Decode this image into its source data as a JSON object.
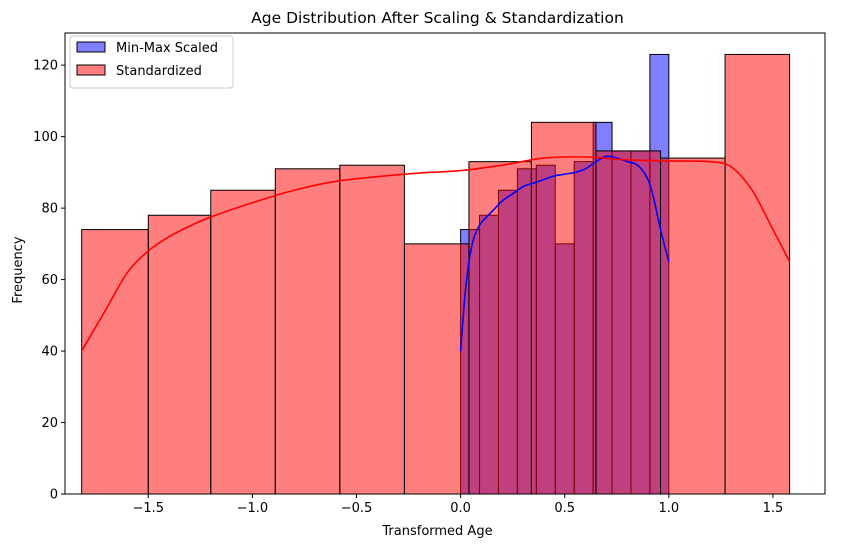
{
  "chart_data": {
    "type": "histogram",
    "title": "Age Distribution After Scaling & Standardization",
    "xlabel": "Transformed Age",
    "ylabel": "Frequency",
    "xlim": [
      -1.9,
      1.75
    ],
    "ylim": [
      0,
      129
    ],
    "x_ticks": [
      -1.5,
      -1.0,
      -0.5,
      0.0,
      0.5,
      1.0,
      1.5
    ],
    "x_tick_labels": [
      "−1.5",
      "−1.0",
      "−0.5",
      "0.0",
      "0.5",
      "1.0",
      "1.5"
    ],
    "y_ticks": [
      0,
      20,
      40,
      60,
      80,
      100,
      120
    ],
    "y_tick_labels": [
      "0",
      "20",
      "40",
      "60",
      "80",
      "100",
      "120"
    ],
    "grid": false,
    "legend_position": "top-left",
    "series": [
      {
        "name": "Min-Max Scaled",
        "color": "#0000ff",
        "fill_opacity": 0.5,
        "bin_edges": [
          0.0,
          0.0909,
          0.1818,
          0.2727,
          0.3636,
          0.4545,
          0.5455,
          0.6364,
          0.7273,
          0.8182,
          0.9091,
          1.0
        ],
        "counts": [
          74,
          78,
          85,
          91,
          92,
          70,
          93,
          104,
          96,
          96,
          123
        ],
        "kde": {
          "x": [
            0.0,
            0.02,
            0.04,
            0.06,
            0.08,
            0.1,
            0.15,
            0.2,
            0.25,
            0.3,
            0.35,
            0.4,
            0.45,
            0.5,
            0.55,
            0.6,
            0.65,
            0.7,
            0.75,
            0.8,
            0.85,
            0.9,
            0.93,
            0.96,
            1.0
          ],
          "y": [
            40,
            55,
            65,
            71,
            74,
            76,
            79,
            82,
            84,
            86,
            87,
            88,
            89,
            89.5,
            90,
            91,
            93,
            94.5,
            94,
            93,
            92,
            88,
            82,
            74,
            65
          ]
        }
      },
      {
        "name": "Standardized",
        "color": "#ff0000",
        "fill_opacity": 0.5,
        "bin_edges": [
          -1.82,
          -1.5,
          -1.2,
          -0.89,
          -0.58,
          -0.27,
          0.04,
          0.34,
          0.65,
          0.96,
          1.27,
          1.58
        ],
        "counts": [
          74,
          78,
          85,
          91,
          92,
          70,
          93,
          104,
          96,
          94,
          123
        ],
        "kde": {
          "x": [
            -1.82,
            -1.7,
            -1.6,
            -1.5,
            -1.4,
            -1.3,
            -1.2,
            -1.0,
            -0.8,
            -0.6,
            -0.4,
            -0.2,
            0.0,
            0.2,
            0.4,
            0.6,
            0.8,
            1.0,
            1.2,
            1.3,
            1.4,
            1.5,
            1.58
          ],
          "y": [
            40,
            52,
            62,
            68,
            72,
            75,
            77.5,
            81.5,
            85,
            87.5,
            88.8,
            89.8,
            90.5,
            92,
            94,
            94.3,
            93.5,
            93.2,
            93,
            91.5,
            85,
            74,
            65
          ]
        }
      }
    ]
  }
}
